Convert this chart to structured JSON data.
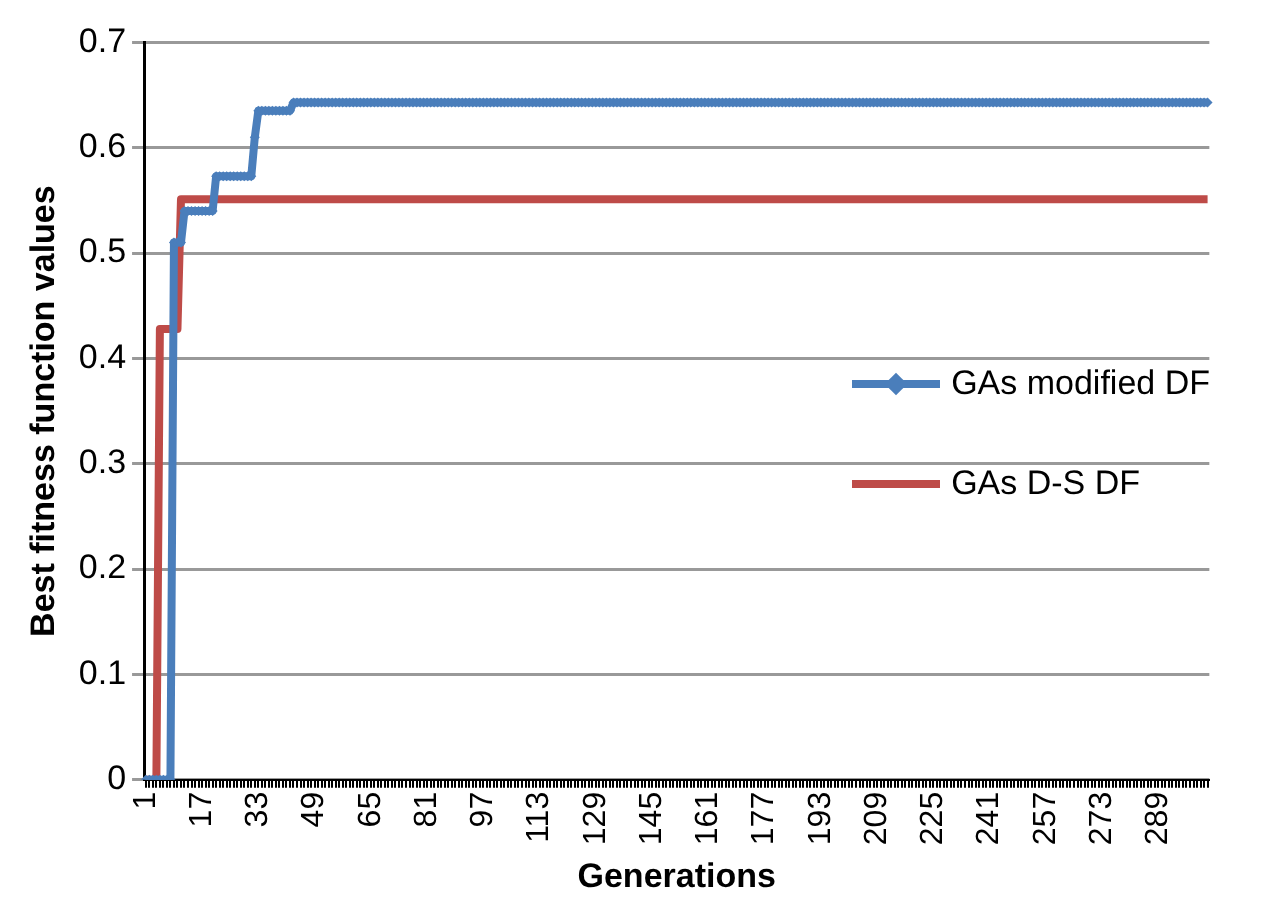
{
  "chart_data": {
    "type": "line",
    "xlabel": "Generations",
    "ylabel": "Best fitness function values",
    "categories": [
      "1",
      null,
      null,
      null,
      null,
      null,
      null,
      null,
      null,
      null,
      null,
      null,
      null,
      null,
      null,
      null,
      "17",
      null,
      null,
      null,
      null,
      null,
      null,
      null,
      null,
      null,
      null,
      null,
      null,
      null,
      null,
      null,
      "33",
      null,
      null,
      null,
      null,
      null,
      null,
      null,
      null,
      null,
      null,
      null,
      null,
      null,
      null,
      null,
      "49",
      null,
      null,
      null,
      null,
      null,
      null,
      null,
      null,
      null,
      null,
      null,
      null,
      null,
      null,
      null,
      "65",
      null,
      null,
      null,
      null,
      null,
      null,
      null,
      null,
      null,
      null,
      null,
      null,
      null,
      null,
      null,
      "81",
      null,
      null,
      null,
      null,
      null,
      null,
      null,
      null,
      null,
      null,
      null,
      null,
      null,
      null,
      null,
      "97",
      null,
      null,
      null,
      null,
      null,
      null,
      null,
      null,
      null,
      null,
      null,
      null,
      null,
      null,
      null,
      "113",
      null,
      null,
      null,
      null,
      null,
      null,
      null,
      null,
      null,
      null,
      null,
      null,
      null,
      null,
      null,
      "129",
      null,
      null,
      null,
      null,
      null,
      null,
      null,
      null,
      null,
      null,
      null,
      null,
      null,
      null,
      null,
      "145",
      null,
      null,
      null,
      null,
      null,
      null,
      null,
      null,
      null,
      null,
      null,
      null,
      null,
      null,
      null,
      "161",
      null,
      null,
      null,
      null,
      null,
      null,
      null,
      null,
      null,
      null,
      null,
      null,
      null,
      null,
      null,
      "177",
      null,
      null,
      null,
      null,
      null,
      null,
      null,
      null,
      null,
      null,
      null,
      null,
      null,
      null,
      null,
      "193",
      null,
      null,
      null,
      null,
      null,
      null,
      null,
      null,
      null,
      null,
      null,
      null,
      null,
      null,
      null,
      "209",
      null,
      null,
      null,
      null,
      null,
      null,
      null,
      null,
      null,
      null,
      null,
      null,
      null,
      null,
      null,
      "225",
      null,
      null,
      null,
      null,
      null,
      null,
      null,
      null,
      null,
      null,
      null,
      null,
      null,
      null,
      null,
      "241",
      null,
      null,
      null,
      null,
      null,
      null,
      null,
      null,
      null,
      null,
      null,
      null,
      null,
      null,
      null,
      "257",
      null,
      null,
      null,
      null,
      null,
      null,
      null,
      null,
      null,
      null,
      null,
      null,
      null,
      null,
      null,
      "273",
      null,
      null,
      null,
      null,
      null,
      null,
      null,
      null,
      null,
      null,
      null,
      null,
      null,
      null,
      null,
      "289",
      null,
      null,
      null,
      null,
      null,
      null,
      null,
      null,
      null,
      null,
      null,
      null,
      null,
      null
    ],
    "series": [
      {
        "name": "GAs modified DF",
        "color": "#4a7ebb",
        "marker": "diamond",
        "values": [
          0,
          0,
          0,
          0,
          0,
          0,
          0,
          0,
          0.51,
          0.51,
          0.51,
          0.54,
          0.54,
          0.54,
          0.54,
          0.54,
          0.54,
          0.54,
          0.54,
          0.54,
          0.573,
          0.573,
          0.573,
          0.573,
          0.573,
          0.573,
          0.573,
          0.573,
          0.573,
          0.573,
          0.573,
          0.61,
          0.635,
          0.635,
          0.635,
          0.635,
          0.635,
          0.635,
          0.635,
          0.635,
          0.635,
          0.635,
          0.643,
          0.643,
          0.643,
          0.643,
          0.643,
          0.643,
          0.643,
          0.643,
          0.643,
          0.643,
          0.643,
          0.643,
          0.643,
          0.643,
          0.643,
          0.643,
          0.643,
          0.643,
          0.643,
          0.643,
          0.643,
          0.643,
          0.643,
          0.643,
          0.643,
          0.643,
          0.643,
          0.643,
          0.643,
          0.643,
          0.643,
          0.643,
          0.643,
          0.643,
          0.643,
          0.643,
          0.643,
          0.643,
          0.643,
          0.643,
          0.643,
          0.643,
          0.643,
          0.643,
          0.643,
          0.643,
          0.643,
          0.643,
          0.643,
          0.643,
          0.643,
          0.643,
          0.643,
          0.643,
          0.643,
          0.643,
          0.643,
          0.643,
          0.643,
          0.643,
          0.643,
          0.643,
          0.643,
          0.643,
          0.643,
          0.643,
          0.643,
          0.643,
          0.643,
          0.643,
          0.643,
          0.643,
          0.643,
          0.643,
          0.643,
          0.643,
          0.643,
          0.643,
          0.643,
          0.643,
          0.643,
          0.643,
          0.643,
          0.643,
          0.643,
          0.643,
          0.643,
          0.643,
          0.643,
          0.643,
          0.643,
          0.643,
          0.643,
          0.643,
          0.643,
          0.643,
          0.643,
          0.643,
          0.643,
          0.643,
          0.643,
          0.643,
          0.643,
          0.643,
          0.643,
          0.643,
          0.643,
          0.643,
          0.643,
          0.643,
          0.643,
          0.643,
          0.643,
          0.643,
          0.643,
          0.643,
          0.643,
          0.643,
          0.643,
          0.643,
          0.643,
          0.643,
          0.643,
          0.643,
          0.643,
          0.643,
          0.643,
          0.643,
          0.643,
          0.643,
          0.643,
          0.643,
          0.643,
          0.643,
          0.643,
          0.643,
          0.643,
          0.643,
          0.643,
          0.643,
          0.643,
          0.643,
          0.643,
          0.643,
          0.643,
          0.643,
          0.643,
          0.643,
          0.643,
          0.643,
          0.643,
          0.643,
          0.643,
          0.643,
          0.643,
          0.643,
          0.643,
          0.643,
          0.643,
          0.643,
          0.643,
          0.643,
          0.643,
          0.643,
          0.643,
          0.643,
          0.643,
          0.643,
          0.643,
          0.643,
          0.643,
          0.643,
          0.643,
          0.643,
          0.643,
          0.643,
          0.643,
          0.643,
          0.643,
          0.643,
          0.643,
          0.643,
          0.643,
          0.643,
          0.643,
          0.643,
          0.643,
          0.643,
          0.643,
          0.643,
          0.643,
          0.643,
          0.643,
          0.643,
          0.643,
          0.643,
          0.643,
          0.643,
          0.643,
          0.643,
          0.643,
          0.643,
          0.643,
          0.643,
          0.643,
          0.643,
          0.643,
          0.643,
          0.643,
          0.643,
          0.643,
          0.643,
          0.643,
          0.643,
          0.643,
          0.643,
          0.643,
          0.643,
          0.643,
          0.643,
          0.643,
          0.643,
          0.643,
          0.643,
          0.643,
          0.643,
          0.643,
          0.643,
          0.643,
          0.643,
          0.643,
          0.643,
          0.643,
          0.643,
          0.643,
          0.643,
          0.643,
          0.643,
          0.643,
          0.643,
          0.643,
          0.643,
          0.643,
          0.643,
          0.643,
          0.643,
          0.643,
          0.643,
          0.643,
          0.643,
          0.643,
          0.643,
          0.643,
          0.643,
          0.643,
          0.643,
          0.643,
          0.643,
          0.643,
          0.643,
          0.643
        ]
      },
      {
        "name": "GAs D-S DF",
        "color": "#be4b48",
        "marker": "none",
        "values": [
          0,
          0,
          0,
          0,
          0.428,
          0.428,
          0.428,
          0.428,
          0.428,
          0.428,
          0.551,
          0.551,
          0.551,
          0.551,
          0.551,
          0.551,
          0.551,
          0.551,
          0.551,
          0.551,
          0.551,
          0.551,
          0.551,
          0.551,
          0.551,
          0.551,
          0.551,
          0.551,
          0.551,
          0.551,
          0.551,
          0.551,
          0.551,
          0.551,
          0.551,
          0.551,
          0.551,
          0.551,
          0.551,
          0.551,
          0.551,
          0.551,
          0.551,
          0.551,
          0.551,
          0.551,
          0.551,
          0.551,
          0.551,
          0.551,
          0.551,
          0.551,
          0.551,
          0.551,
          0.551,
          0.551,
          0.551,
          0.551,
          0.551,
          0.551,
          0.551,
          0.551,
          0.551,
          0.551,
          0.551,
          0.551,
          0.551,
          0.551,
          0.551,
          0.551,
          0.551,
          0.551,
          0.551,
          0.551,
          0.551,
          0.551,
          0.551,
          0.551,
          0.551,
          0.551,
          0.551,
          0.551,
          0.551,
          0.551,
          0.551,
          0.551,
          0.551,
          0.551,
          0.551,
          0.551,
          0.551,
          0.551,
          0.551,
          0.551,
          0.551,
          0.551,
          0.551,
          0.551,
          0.551,
          0.551,
          0.551,
          0.551,
          0.551,
          0.551,
          0.551,
          0.551,
          0.551,
          0.551,
          0.551,
          0.551,
          0.551,
          0.551,
          0.551,
          0.551,
          0.551,
          0.551,
          0.551,
          0.551,
          0.551,
          0.551,
          0.551,
          0.551,
          0.551,
          0.551,
          0.551,
          0.551,
          0.551,
          0.551,
          0.551,
          0.551,
          0.551,
          0.551,
          0.551,
          0.551,
          0.551,
          0.551,
          0.551,
          0.551,
          0.551,
          0.551,
          0.551,
          0.551,
          0.551,
          0.551,
          0.551,
          0.551,
          0.551,
          0.551,
          0.551,
          0.551,
          0.551,
          0.551,
          0.551,
          0.551,
          0.551,
          0.551,
          0.551,
          0.551,
          0.551,
          0.551,
          0.551,
          0.551,
          0.551,
          0.551,
          0.551,
          0.551,
          0.551,
          0.551,
          0.551,
          0.551,
          0.551,
          0.551,
          0.551,
          0.551,
          0.551,
          0.551,
          0.551,
          0.551,
          0.551,
          0.551,
          0.551,
          0.551,
          0.551,
          0.551,
          0.551,
          0.551,
          0.551,
          0.551,
          0.551,
          0.551,
          0.551,
          0.551,
          0.551,
          0.551,
          0.551,
          0.551,
          0.551,
          0.551,
          0.551,
          0.551,
          0.551,
          0.551,
          0.551,
          0.551,
          0.551,
          0.551,
          0.551,
          0.551,
          0.551,
          0.551,
          0.551,
          0.551,
          0.551,
          0.551,
          0.551,
          0.551,
          0.551,
          0.551,
          0.551,
          0.551,
          0.551,
          0.551,
          0.551,
          0.551,
          0.551,
          0.551,
          0.551,
          0.551,
          0.551,
          0.551,
          0.551,
          0.551,
          0.551,
          0.551,
          0.551,
          0.551,
          0.551,
          0.551,
          0.551,
          0.551,
          0.551,
          0.551,
          0.551,
          0.551,
          0.551,
          0.551,
          0.551,
          0.551,
          0.551,
          0.551,
          0.551,
          0.551,
          0.551,
          0.551,
          0.551,
          0.551,
          0.551,
          0.551,
          0.551,
          0.551,
          0.551,
          0.551,
          0.551,
          0.551,
          0.551,
          0.551,
          0.551,
          0.551,
          0.551,
          0.551,
          0.551,
          0.551,
          0.551,
          0.551,
          0.551,
          0.551,
          0.551,
          0.551,
          0.551,
          0.551,
          0.551,
          0.551,
          0.551,
          0.551,
          0.551,
          0.551,
          0.551,
          0.551,
          0.551,
          0.551,
          0.551,
          0.551,
          0.551,
          0.551,
          0.551,
          0.551,
          0.551,
          0.551,
          0.551,
          0.551,
          0.551,
          0.551,
          0.551
        ]
      }
    ],
    "ylim": [
      0,
      0.7
    ],
    "yticks": [
      0,
      0.1,
      0.2,
      0.3,
      0.4,
      0.5,
      0.6,
      0.7
    ],
    "grid": "y",
    "legend": "right"
  }
}
